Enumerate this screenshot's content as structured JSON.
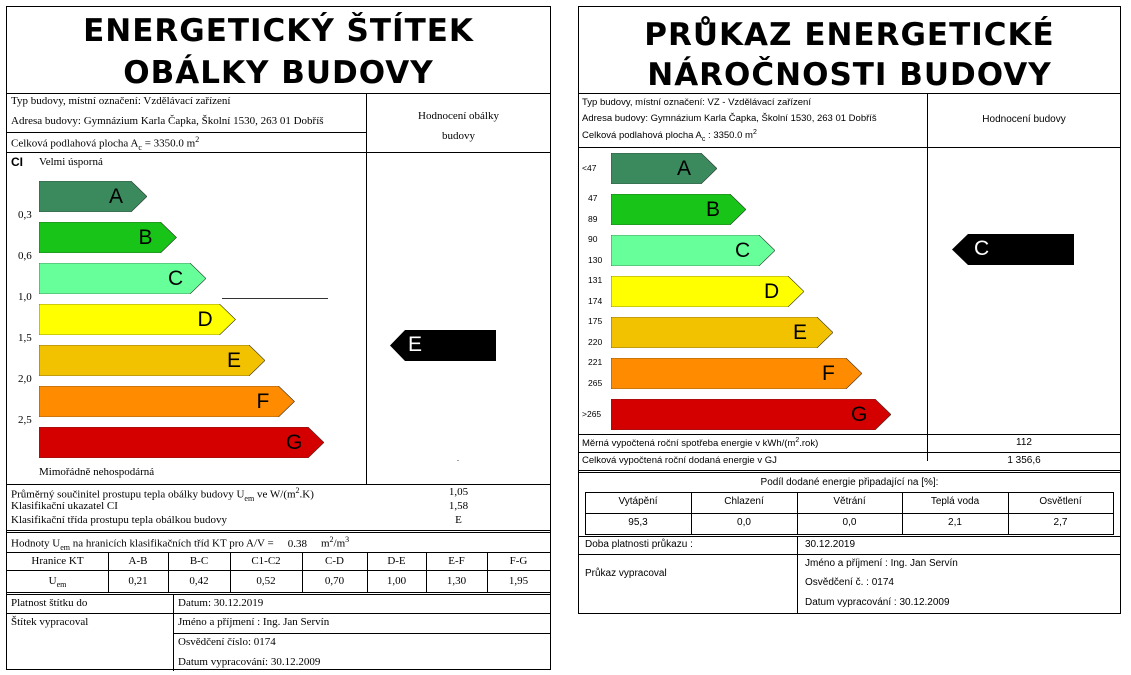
{
  "left": {
    "title_line1": "ENERGETICKÝ ŠTÍTEK",
    "title_line2": "OBÁLKY BUDOVY",
    "info": {
      "type": "Typ budovy, místní označení: Vzdělávací zařízení",
      "address": "Adresa budovy: Gymnázium Karla Čapka, Školní 1530, 263 01 Dobříš",
      "area_prefix": "Celková podlahová plocha A",
      "area_sub": "c",
      "area_value": " = 3350.0 m",
      "area_sup": "2"
    },
    "rating_header_line1": "Hodnocení obálky",
    "rating_header_line2": "budovy",
    "ci_label": "CI",
    "top_label": "Velmi úsporná",
    "bottom_label": "Mimořádně nehospodárná",
    "scale_values": [
      "0,3",
      "0,6",
      "1,0",
      "1,5",
      "2,0",
      "2,5"
    ],
    "classes": [
      {
        "letter": "A",
        "color": "#3a8a5e"
      },
      {
        "letter": "B",
        "color": "#18c418"
      },
      {
        "letter": "C",
        "color": "#66ff99"
      },
      {
        "letter": "D",
        "color": "#ffff00"
      },
      {
        "letter": "E",
        "color": "#f2c200"
      },
      {
        "letter": "F",
        "color": "#ff8c00"
      },
      {
        "letter": "G",
        "color": "#d40000"
      }
    ],
    "rating_letter": "E",
    "summary": {
      "row1_prefix": "Průměrný součinitel prostupu tepla obálky budovy U",
      "row1_sub": "em",
      "row1_suffix": " ve W/(m",
      "row1_sup": "2",
      "row1_end": ".K)",
      "row1_value": "1,05",
      "row2_label": "Klasifikační ukazatel CI",
      "row2_value": "1,58",
      "row3_label": "Klasifikační třída prostupu tepla obálkou budovy",
      "row3_value": "E"
    },
    "limits_prefix": "Hodnoty U",
    "limits_sub": "em",
    "limits_mid": " na hranicích klasifikačních tříd KT pro A/V =",
    "limits_av": "0.38",
    "limits_unit": "m",
    "limits_unit_sup": "2",
    "limits_unit_end": "/m",
    "limits_unit_sup2": "3",
    "kt_header": [
      "Hranice KT",
      "A-B",
      "B-C",
      "C1-C2",
      "C-D",
      "D-E",
      "E-F",
      "F-G"
    ],
    "kt_row_label": "U",
    "kt_row_sub": "em",
    "kt_values": [
      "0,21",
      "0,42",
      "0,52",
      "0,70",
      "1,00",
      "1,30",
      "1,95"
    ],
    "validity_label": "Platnost štítku do",
    "validity_value": "Datum: 30.12.2019",
    "author_label": "Štítek vypracoval",
    "author_name": "Jméno a příjmení : Ing. Jan Servín",
    "author_cert": "Osvědčení číslo: 0174",
    "author_date": "Datum vypracování: 30.12.2009"
  },
  "right": {
    "title_line1": "PRŮKAZ ENERGETICKÉ",
    "title_line2": "NÁROČNOSTI BUDOVY",
    "info": {
      "type": "Typ budovy, místní označení: VZ - Vzdělávací zařízení",
      "address": "Adresa budovy: Gymnázium Karla Čapka, Školní 1530, 263 01 Dobříš",
      "area_prefix": "Celková podlahová plocha A",
      "area_sub": "c",
      "area_value": " : 3350.0 m",
      "area_sup": "2"
    },
    "rating_header": "Hodnocení budovy",
    "classes": [
      {
        "letter": "A",
        "color": "#3a8a5e",
        "range_top": "<47",
        "range_bottom": ""
      },
      {
        "letter": "B",
        "color": "#18c418",
        "range_top": "47",
        "range_bottom": "89"
      },
      {
        "letter": "C",
        "color": "#66ff99",
        "range_top": "90",
        "range_bottom": "130"
      },
      {
        "letter": "D",
        "color": "#ffff00",
        "range_top": "131",
        "range_bottom": "174"
      },
      {
        "letter": "E",
        "color": "#f2c200",
        "range_top": "175",
        "range_bottom": "220"
      },
      {
        "letter": "F",
        "color": "#ff8c00",
        "range_top": "221",
        "range_bottom": "265"
      },
      {
        "letter": "G",
        "color": "#d40000",
        "range_top": ">265",
        "range_bottom": ""
      }
    ],
    "rating_letter": "C",
    "specific_label_prefix": "Měrná vypočtená roční spotřeba energie v kWh/(m",
    "specific_sup": "2",
    "specific_label_end": ".rok)",
    "specific_value": "112",
    "total_label": "Celková vypočtená roční dodaná energie v GJ",
    "total_value": "1 356,6",
    "share_title": "Podíl dodané energie připadající na [%]:",
    "share_headers": [
      "Vytápění",
      "Chlazení",
      "Větrání",
      "Teplá voda",
      "Osvětlení"
    ],
    "share_values": [
      "95,3",
      "0,0",
      "0,0",
      "2,1",
      "2,7"
    ],
    "validity_label": "Doba platnosti průkazu :",
    "validity_value": "30.12.2019",
    "author_label": "Průkaz vypracoval",
    "author_name": "Jméno a příjmení : Ing. Jan Servín",
    "author_cert": "Osvědčení č. : 0174",
    "author_date": "Datum vypracování : 30.12.2009"
  }
}
